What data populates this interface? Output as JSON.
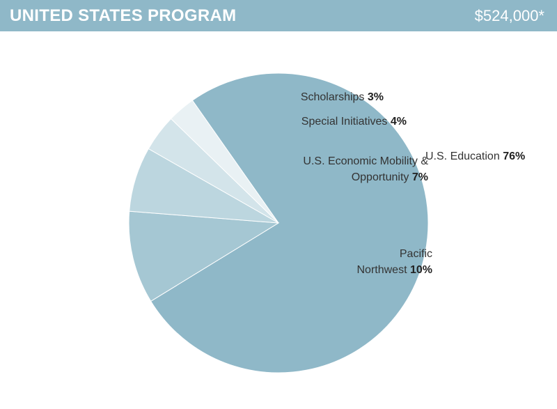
{
  "chart_data": {
    "type": "pie",
    "title": "UNITED STATES PROGRAM",
    "amount": "$524,000*",
    "categories": [
      "U.S. Education",
      "Pacific Northwest",
      "U.S. Economic Mobility & Opportunity",
      "Special Initiatives",
      "Scholarships"
    ],
    "values": [
      76,
      10,
      7,
      4,
      3
    ],
    "value_labels": [
      "76%",
      "10%",
      "7%",
      "4%",
      "3%"
    ],
    "colors": [
      "#8fb8c8",
      "#a5c7d3",
      "#bcd6df",
      "#d3e4ea",
      "#e9f1f4"
    ]
  }
}
